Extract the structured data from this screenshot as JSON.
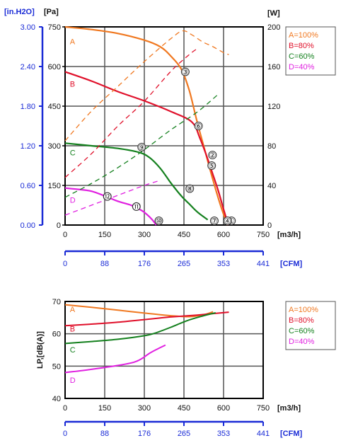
{
  "colors": {
    "A": "#f07820",
    "B": "#e0102a",
    "C": "#14801e",
    "D": "#e020e0",
    "blue_axis": "#1a2bd6",
    "grid": "#555555"
  },
  "chart_data": [
    {
      "type": "line",
      "title": "",
      "units": {
        "in_h2o": "[in.H2O]",
        "pa": "[Pa]",
        "w": "[W]",
        "m3h": "[m3/h]",
        "cfm": "[CFM]"
      },
      "xlim": [
        0,
        750
      ],
      "ylim_pa": [
        0,
        750
      ],
      "ylim_w": [
        0,
        200
      ],
      "x_ticks": [
        "0",
        "150",
        "300",
        "450",
        "600",
        "750"
      ],
      "y_ticks_pa": [
        "0",
        "150",
        "300",
        "450",
        "600",
        "750"
      ],
      "y_ticks_inh2o": [
        "0.00",
        "0.60",
        "1.20",
        "1.80",
        "2.40",
        "3.00"
      ],
      "y_ticks_w": [
        "0",
        "40",
        "80",
        "120",
        "160",
        "200"
      ],
      "cfm_ticks": [
        "0",
        "88",
        "176",
        "265",
        "353",
        "441"
      ],
      "legend": [
        "A=100%",
        "B=80%",
        "C=60%",
        "D=40%"
      ],
      "legend_position": "right",
      "series": [
        {
          "name": "A",
          "quantity": "pressure_pa",
          "x": [
            0,
            100,
            200,
            300,
            360,
            400,
            440,
            470,
            500,
            530,
            560,
            590,
            615
          ],
          "y": [
            750,
            740,
            725,
            700,
            675,
            640,
            590,
            510,
            390,
            280,
            170,
            70,
            0
          ]
        },
        {
          "name": "B",
          "quantity": "pressure_pa",
          "x": [
            0,
            100,
            200,
            300,
            400,
            480,
            510,
            540,
            560,
            580,
            600,
            618
          ],
          "y": [
            580,
            545,
            505,
            470,
            430,
            390,
            330,
            250,
            190,
            130,
            60,
            0
          ]
        },
        {
          "name": "C",
          "quantity": "pressure_pa",
          "x": [
            0,
            100,
            200,
            280,
            320,
            360,
            400,
            440,
            470,
            500,
            540
          ],
          "y": [
            310,
            300,
            290,
            275,
            255,
            215,
            160,
            110,
            80,
            50,
            20
          ]
        },
        {
          "name": "D",
          "quantity": "pressure_pa",
          "x": [
            0,
            50,
            100,
            150,
            200,
            250,
            290,
            310,
            330,
            345
          ],
          "y": [
            140,
            135,
            128,
            110,
            90,
            75,
            55,
            40,
            20,
            0
          ]
        },
        {
          "name": "A",
          "quantity": "power_w",
          "style": "dashed",
          "x": [
            0,
            100,
            200,
            300,
            400,
            445,
            480,
            520,
            560,
            600,
            620
          ],
          "y": [
            85,
            115,
            140,
            165,
            188,
            196,
            192,
            185,
            180,
            174,
            172
          ]
        },
        {
          "name": "B",
          "quantity": "power_w",
          "style": "dashed",
          "x": [
            0,
            100,
            200,
            300,
            400,
            470,
            500
          ],
          "y": [
            48,
            72,
            100,
            125,
            155,
            172,
            178
          ]
        },
        {
          "name": "C",
          "quantity": "power_w",
          "style": "dashed",
          "x": [
            0,
            100,
            200,
            300,
            400,
            500,
            580
          ],
          "y": [
            28,
            42,
            58,
            76,
            96,
            114,
            132
          ]
        },
        {
          "name": "D",
          "quantity": "power_w",
          "style": "dashed",
          "x": [
            0,
            100,
            200,
            300,
            360
          ],
          "y": [
            10,
            20,
            30,
            40,
            45
          ]
        }
      ],
      "points": [
        {
          "label": "①",
          "x": 630,
          "y": 0
        },
        {
          "label": "②",
          "x": 558,
          "y": 265
        },
        {
          "label": "③",
          "x": 455,
          "y": 580
        },
        {
          "label": "④",
          "x": 615,
          "y": 0
        },
        {
          "label": "⑤",
          "x": 555,
          "y": 225
        },
        {
          "label": "⑥",
          "x": 505,
          "y": 375
        },
        {
          "label": "⑦",
          "x": 565,
          "y": 0
        },
        {
          "label": "⑧",
          "x": 472,
          "y": 138
        },
        {
          "label": "⑨",
          "x": 290,
          "y": 295
        },
        {
          "label": "⑩",
          "x": 355,
          "y": 0
        },
        {
          "label": "⑪",
          "x": 270,
          "y": 70
        },
        {
          "label": "⑫",
          "x": 160,
          "y": 108
        }
      ],
      "curve_labels": [
        {
          "text": "A",
          "x": 18,
          "y": 695
        },
        {
          "text": "B",
          "x": 18,
          "y": 535
        },
        {
          "text": "C",
          "x": 18,
          "y": 275
        },
        {
          "text": "D",
          "x": 18,
          "y": 95
        }
      ]
    },
    {
      "type": "line",
      "title": "",
      "ylabel": "LP,[dB(A)]",
      "xlim": [
        0,
        750
      ],
      "ylim": [
        40,
        70
      ],
      "x_ticks": [
        "0",
        "150",
        "300",
        "450",
        "600",
        "750"
      ],
      "y_ticks": [
        "40",
        "50",
        "60",
        "70"
      ],
      "units": {
        "m3h": "[m3/h]",
        "cfm": "[CFM]"
      },
      "cfm_ticks": [
        "0",
        "88",
        "176",
        "265",
        "353",
        "441"
      ],
      "legend": [
        "A=100%",
        "B=80%",
        "C=60%",
        "D=40%"
      ],
      "legend_position": "right",
      "series": [
        {
          "name": "A",
          "x": [
            0,
            100,
            200,
            300,
            400,
            470,
            520,
            560
          ],
          "y": [
            69,
            68.2,
            67.3,
            66.4,
            65.6,
            65.3,
            65.8,
            66.8
          ]
        },
        {
          "name": "B",
          "x": [
            0,
            100,
            200,
            300,
            400,
            500,
            620
          ],
          "y": [
            62.5,
            63.0,
            63.6,
            64.4,
            65.2,
            65.8,
            66.7
          ]
        },
        {
          "name": "C",
          "x": [
            0,
            100,
            200,
            300,
            340,
            400,
            460,
            520,
            570
          ],
          "y": [
            57,
            57.6,
            58.3,
            59.4,
            60.2,
            62,
            64,
            65.5,
            66.5
          ]
        },
        {
          "name": "D",
          "x": [
            0,
            100,
            200,
            260,
            290,
            320,
            350,
            380
          ],
          "y": [
            48,
            49,
            50.2,
            51.2,
            52.3,
            54,
            55.3,
            56.5
          ]
        }
      ],
      "curve_labels": [
        {
          "text": "A",
          "x": 18,
          "y": 67.6
        },
        {
          "text": "B",
          "x": 18,
          "y": 61.6
        },
        {
          "text": "C",
          "x": 18,
          "y": 55.1
        },
        {
          "text": "D",
          "x": 18,
          "y": 45.7
        }
      ]
    }
  ]
}
